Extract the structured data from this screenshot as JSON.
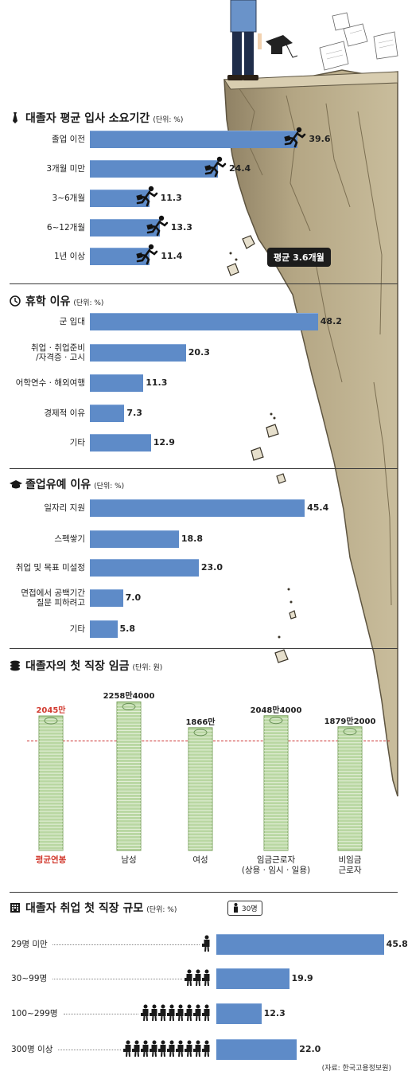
{
  "section1": {
    "title": "대졸자 평균 입사 소요기간",
    "unit": "(단위: %)",
    "icon": "necktie-icon",
    "categories": [
      "졸업 이전",
      "3개월 미만",
      "3~6개월",
      "6~12개월",
      "1년 이상"
    ],
    "values": [
      39.6,
      24.4,
      11.3,
      13.3,
      11.4
    ],
    "value_labels": [
      "39.6",
      "24.4",
      "11.3",
      "13.3",
      "11.4"
    ],
    "average_badge": "평균 3.6개월"
  },
  "section2": {
    "title": "휴학 이유",
    "unit": "(단위: %)",
    "icon": "clock-icon",
    "categories": [
      "군 입대",
      "취업 · 취업준비\n/자격증 · 고시",
      "어학연수 · 해외여행",
      "경제적 이유",
      "기타"
    ],
    "values": [
      48.2,
      20.3,
      11.3,
      7.3,
      12.9
    ],
    "value_labels": [
      "48.2",
      "20.3",
      "11.3",
      "7.3",
      "12.9"
    ]
  },
  "section3": {
    "title": "졸업유예 이유",
    "unit": "(단위: %)",
    "icon": "graduation-cap-icon",
    "categories": [
      "일자리 지원",
      "스펙쌓기",
      "취업 및 목표 미설정",
      "면접에서 공백기간\n질문 피하려고",
      "기타"
    ],
    "values": [
      45.4,
      18.8,
      23.0,
      7.0,
      5.8
    ],
    "value_labels": [
      "45.4",
      "18.8",
      "23.0",
      "7.0",
      "5.8"
    ]
  },
  "section4": {
    "title": "대졸자의 첫 직장 임금",
    "unit": "(단위: 원)",
    "icon": "coin-stack-icon",
    "categories": [
      "평균연봉",
      "남성",
      "여성",
      "임금근로자\n(상용 · 임시 · 일용)",
      "비임금\n근로자"
    ],
    "values": [
      20450000,
      22584000,
      18660000,
      20484000,
      18792000
    ],
    "value_labels": [
      "2045만",
      "2258만4000",
      "1866만",
      "2048만4000",
      "1879만2000"
    ],
    "highlight_color": "#d23a2f"
  },
  "section5": {
    "title": "대졸자 취업 첫 직장 규모",
    "unit": "(단위: %)",
    "icon": "building-icon",
    "legend": "30명",
    "categories": [
      "29명 미만",
      "30~99명",
      "100~299명",
      "300명 이상"
    ],
    "values": [
      45.8,
      19.9,
      12.3,
      22.0
    ],
    "value_labels": [
      "45.8",
      "19.9",
      "12.3",
      "22.0"
    ],
    "people_icons": [
      1,
      3,
      8,
      10
    ]
  },
  "source": "(자료: 한국고용정보원)",
  "colors": {
    "bar": "#5e8bc8",
    "cliff": "#a89a78",
    "accent_red": "#d23a2f"
  },
  "chart_data": [
    {
      "type": "bar",
      "title": "대졸자 평균 입사 소요기간",
      "ylabel": "(단위: %)",
      "categories": [
        "졸업 이전",
        "3개월 미만",
        "3~6개월",
        "6~12개월",
        "1년 이상"
      ],
      "values": [
        39.6,
        24.4,
        11.3,
        13.3,
        11.4
      ]
    },
    {
      "type": "bar",
      "title": "휴학 이유",
      "ylabel": "(단위: %)",
      "categories": [
        "군 입대",
        "취업 · 취업준비 /자격증 · 고시",
        "어학연수 · 해외여행",
        "경제적 이유",
        "기타"
      ],
      "values": [
        48.2,
        20.3,
        11.3,
        7.3,
        12.9
      ]
    },
    {
      "type": "bar",
      "title": "졸업유예 이유",
      "ylabel": "(단위: %)",
      "categories": [
        "일자리 지원",
        "스펙쌓기",
        "취업 및 목표 미설정",
        "면접에서 공백기간 질문 피하려고",
        "기타"
      ],
      "values": [
        45.4,
        18.8,
        23.0,
        7.0,
        5.8
      ]
    },
    {
      "type": "bar",
      "title": "대졸자의 첫 직장 임금",
      "ylabel": "(단위: 원)",
      "categories": [
        "평균연봉",
        "남성",
        "여성",
        "임금근로자 (상용 · 임시 · 일용)",
        "비임금 근로자"
      ],
      "values": [
        20450000,
        22584000,
        18660000,
        20484000,
        18792000
      ]
    },
    {
      "type": "bar",
      "title": "대졸자 취업 첫 직장 규모",
      "ylabel": "(단위: %)",
      "categories": [
        "29명 미만",
        "30~99명",
        "100~299명",
        "300명 이상"
      ],
      "values": [
        45.8,
        19.9,
        12.3,
        22.0
      ]
    }
  ]
}
